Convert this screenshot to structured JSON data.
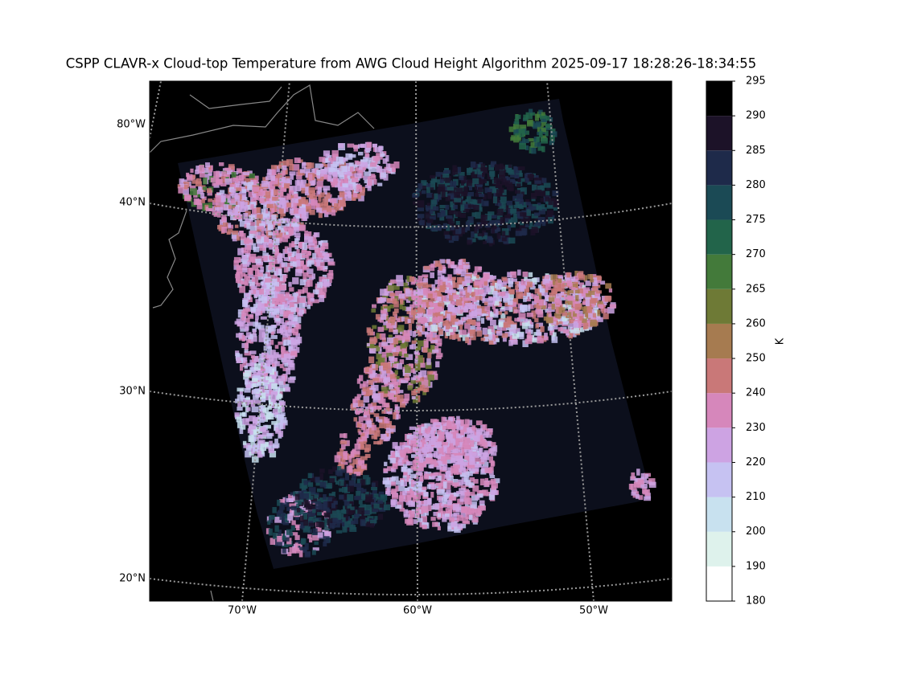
{
  "title": "CSPP CLAVR-x Cloud-top Temperature from AWG Cloud Height Algorithm 2025-09-17 18:28:26-18:34:55",
  "map": {
    "lat_labels": [
      "80°W",
      "40°N",
      "30°N",
      "20°N"
    ],
    "lon_labels": [
      "70°W",
      "60°W",
      "50°W"
    ]
  },
  "colorbar": {
    "label": "K",
    "boundaries": [
      180,
      190,
      200,
      210,
      220,
      230,
      240,
      250,
      260,
      265,
      270,
      275,
      280,
      285,
      290,
      295
    ],
    "colors": [
      "#ffffff",
      "#def2ec",
      "#c8e1ef",
      "#c6c2f2",
      "#cda3e3",
      "#d687bb",
      "#c97878",
      "#a67b50",
      "#6e7a36",
      "#437a3a",
      "#22644a",
      "#1b4a55",
      "#1e2a4a",
      "#1c1228",
      "#000000"
    ]
  }
}
